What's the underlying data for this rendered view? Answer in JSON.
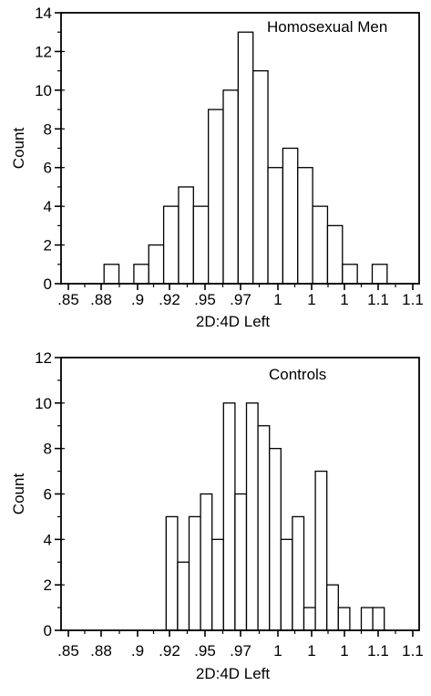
{
  "colors": {
    "bar_fill": "#ffffff",
    "stroke": "#000000",
    "background": "#ffffff"
  },
  "chart_data": [
    {
      "type": "bar",
      "title": "Homosexual Men",
      "xlabel": "2D:4D Left",
      "ylabel": "Count",
      "ylim": [
        0,
        14
      ],
      "yticks": [
        0,
        2,
        4,
        6,
        8,
        10,
        12,
        14
      ],
      "xtick_labels": [
        ".85",
        ".88",
        ".9",
        ".92",
        ".95",
        ".97",
        "1",
        "1",
        "1",
        "1.1",
        "1.1"
      ],
      "grid": false,
      "bar_values": [
        0,
        0,
        1,
        0,
        1,
        2,
        4,
        5,
        4,
        9,
        10,
        13,
        11,
        6,
        7,
        6,
        4,
        3,
        1,
        0,
        1,
        0,
        0,
        0,
        0,
        0
      ]
    },
    {
      "type": "bar",
      "title": "Controls",
      "xlabel": "2D:4D Left",
      "ylabel": "Count",
      "ylim": [
        0,
        12
      ],
      "yticks": [
        0,
        2,
        4,
        6,
        8,
        10,
        12
      ],
      "xtick_labels": [
        ".85",
        ".88",
        ".9",
        ".92",
        ".95",
        ".97",
        "1",
        "1",
        "1",
        "1.1",
        "1.1"
      ],
      "grid": false,
      "bar_values": [
        0,
        0,
        0,
        0,
        0,
        0,
        0,
        0,
        5,
        3,
        5,
        6,
        4,
        10,
        6,
        10,
        9,
        8,
        4,
        5,
        1,
        7,
        2,
        1,
        0,
        1,
        1,
        0,
        0,
        0
      ]
    }
  ]
}
